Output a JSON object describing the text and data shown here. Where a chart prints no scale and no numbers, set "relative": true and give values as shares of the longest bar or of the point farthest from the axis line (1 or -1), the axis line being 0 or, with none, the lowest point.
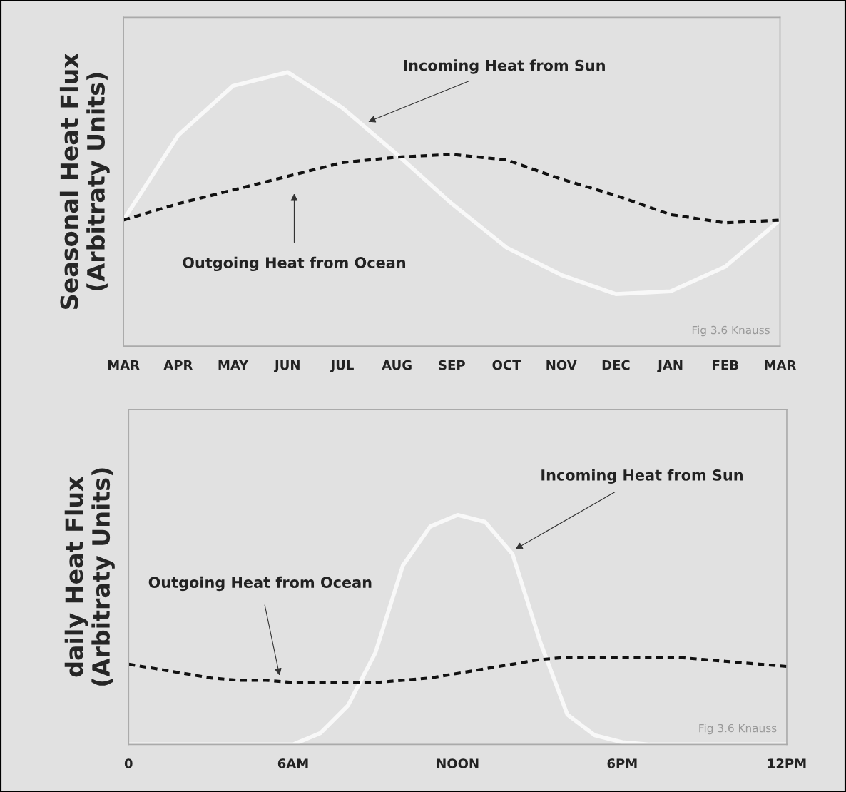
{
  "chart_data": [
    {
      "type": "line",
      "relative": true,
      "ylabel": "Seasonal Heat Flux\n(Arbitraty Units)",
      "categories": [
        "MAR",
        "APR",
        "MAY",
        "JUN",
        "JUL",
        "AUG",
        "SEP",
        "OCT",
        "NOV",
        "DEC",
        "JAN",
        "FEB",
        "MAR"
      ],
      "series": [
        {
          "color": "#f8f8f8",
          "line_style": "solid",
          "values": [
            0.46,
            0.77,
            0.95,
            1.0,
            0.87,
            0.7,
            0.52,
            0.36,
            0.26,
            0.19,
            0.2,
            0.29,
            0.46
          ]
        },
        {
          "color": "#111111",
          "line_style": "dashed",
          "values": [
            0.46,
            0.52,
            0.57,
            0.62,
            0.67,
            0.69,
            0.7,
            0.68,
            0.61,
            0.55,
            0.48,
            0.45,
            0.46
          ]
        }
      ],
      "annotations": [
        "Incoming Heat from Sun",
        "Outgoing Heat from Ocean",
        "Fig 3.6 Knauss"
      ]
    },
    {
      "type": "line",
      "relative": true,
      "ylabel": "daily Heat Flux\n(Arbitraty Units)",
      "categories": [
        "0",
        null,
        null,
        null,
        null,
        null,
        "6AM",
        null,
        null,
        null,
        null,
        null,
        "NOON",
        null,
        null,
        null,
        null,
        null,
        "6PM",
        null,
        null,
        null,
        null,
        null,
        "12PM"
      ],
      "series": [
        {
          "color": "#f8f8f8",
          "line_style": "solid",
          "values": [
            0,
            0,
            0,
            0,
            0,
            0,
            0,
            0.05,
            0.17,
            0.4,
            0.78,
            0.95,
            1.0,
            0.97,
            0.83,
            0.45,
            0.13,
            0.04,
            0.01,
            0,
            0,
            0,
            0,
            0,
            0
          ]
        },
        {
          "color": "#111111",
          "line_style": "dashed",
          "values": [
            0.35,
            0.33,
            0.31,
            0.29,
            0.28,
            0.28,
            0.27,
            0.27,
            0.27,
            0.27,
            0.28,
            0.29,
            0.31,
            0.33,
            0.35,
            0.37,
            0.38,
            0.38,
            0.38,
            0.38,
            0.38,
            0.37,
            0.36,
            0.35,
            0.34
          ]
        }
      ],
      "annotations": [
        "Incoming Heat from Sun",
        "Outgoing Heat from Ocean",
        "Fig 3.6 Knauss"
      ]
    }
  ]
}
